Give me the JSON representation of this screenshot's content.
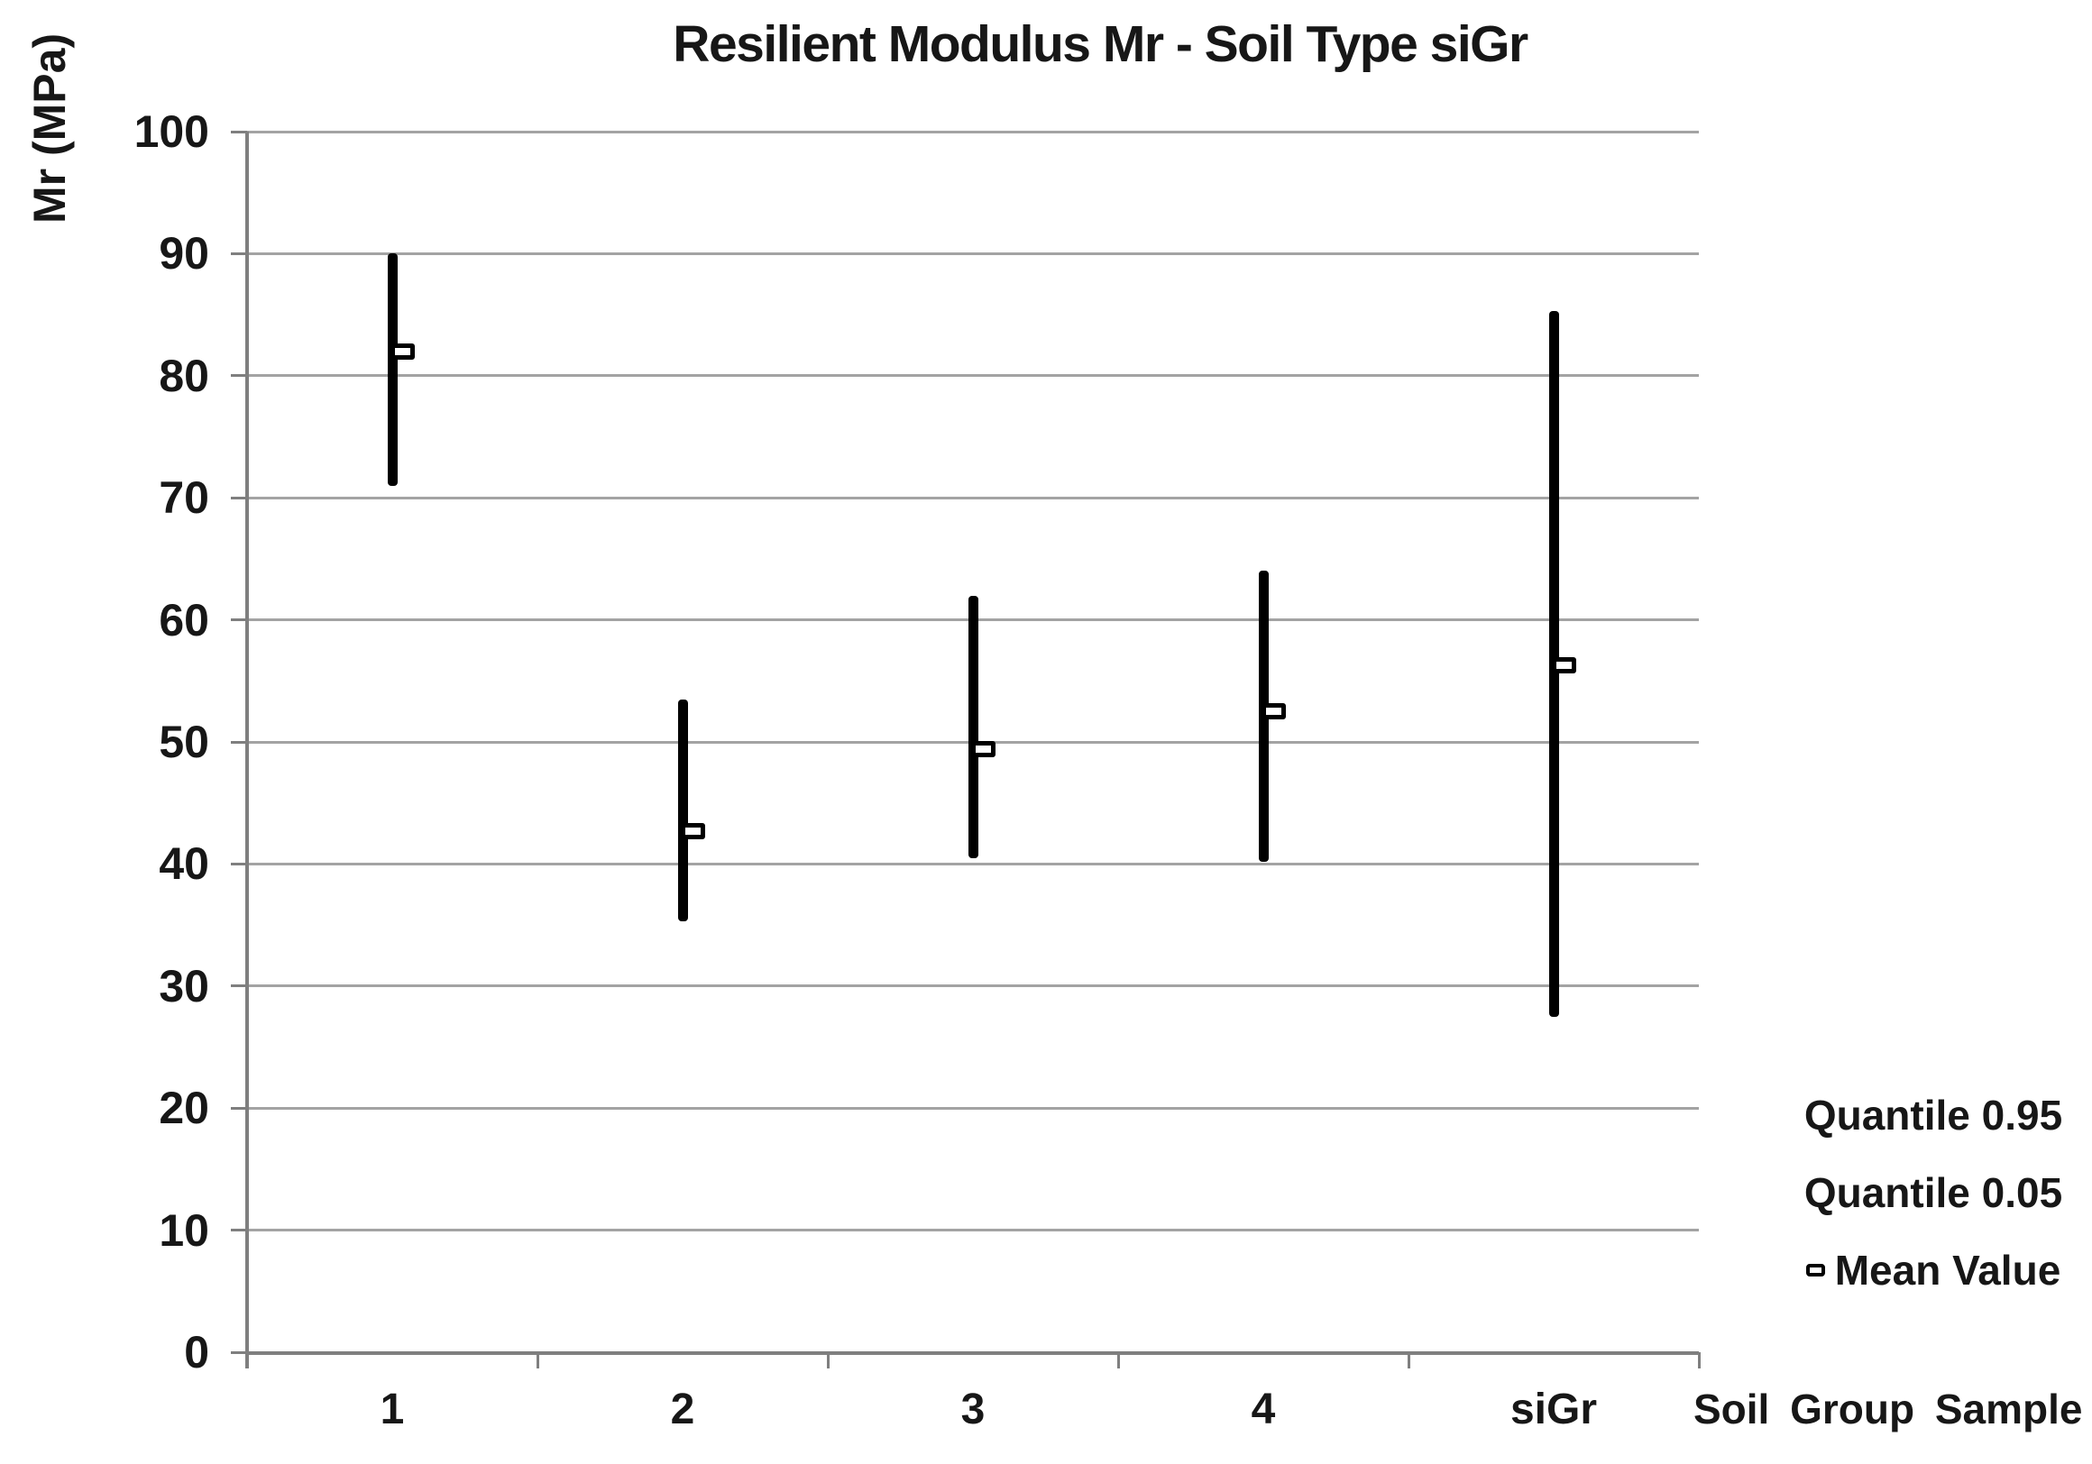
{
  "title": "Resilient Modulus Mr - Soil Type siGr",
  "y_axis": {
    "label": "Mr (MPa)",
    "min": 0,
    "max": 100,
    "tick_step": 10
  },
  "x_axis": {
    "title": "Soil Group Sample",
    "categories": [
      "1",
      "2",
      "3",
      "4",
      "siGr"
    ]
  },
  "legend": {
    "items": [
      {
        "label": "Quantile 0.95",
        "marker": "none"
      },
      {
        "label": "Quantile 0.05",
        "marker": "none"
      },
      {
        "label": "Mean Value",
        "marker": "mean-square-icon"
      }
    ]
  },
  "colors": {
    "data_line": "#000000",
    "marker_fill": "#ffffff",
    "gridline": "#a3a3a3",
    "axis": "#7f7f7f",
    "text": "#171717",
    "background": "#ffffff"
  },
  "chart_data": {
    "type": "bar",
    "subtype": "quantile-range-with-mean",
    "title": "Resilient Modulus Mr - Soil Type siGr",
    "xlabel": "Soil Group Sample",
    "ylabel": "Mr (MPa)",
    "categories": [
      "1",
      "2",
      "3",
      "4",
      "siGr"
    ],
    "series": [
      {
        "name": "Quantile 0.95",
        "values": [
          90.0,
          53.5,
          62.0,
          64.0,
          85.3
        ]
      },
      {
        "name": "Quantile 0.05",
        "values": [
          71.0,
          35.3,
          40.5,
          40.2,
          27.5
        ]
      },
      {
        "name": "Mean Value",
        "values": [
          82.0,
          42.7,
          49.4,
          52.5,
          56.3
        ]
      }
    ],
    "ylim": [
      0,
      100
    ],
    "yticks": [
      0,
      10,
      20,
      30,
      40,
      50,
      60,
      70,
      80,
      90,
      100
    ],
    "grid": true,
    "legend_position": "right-bottom"
  }
}
